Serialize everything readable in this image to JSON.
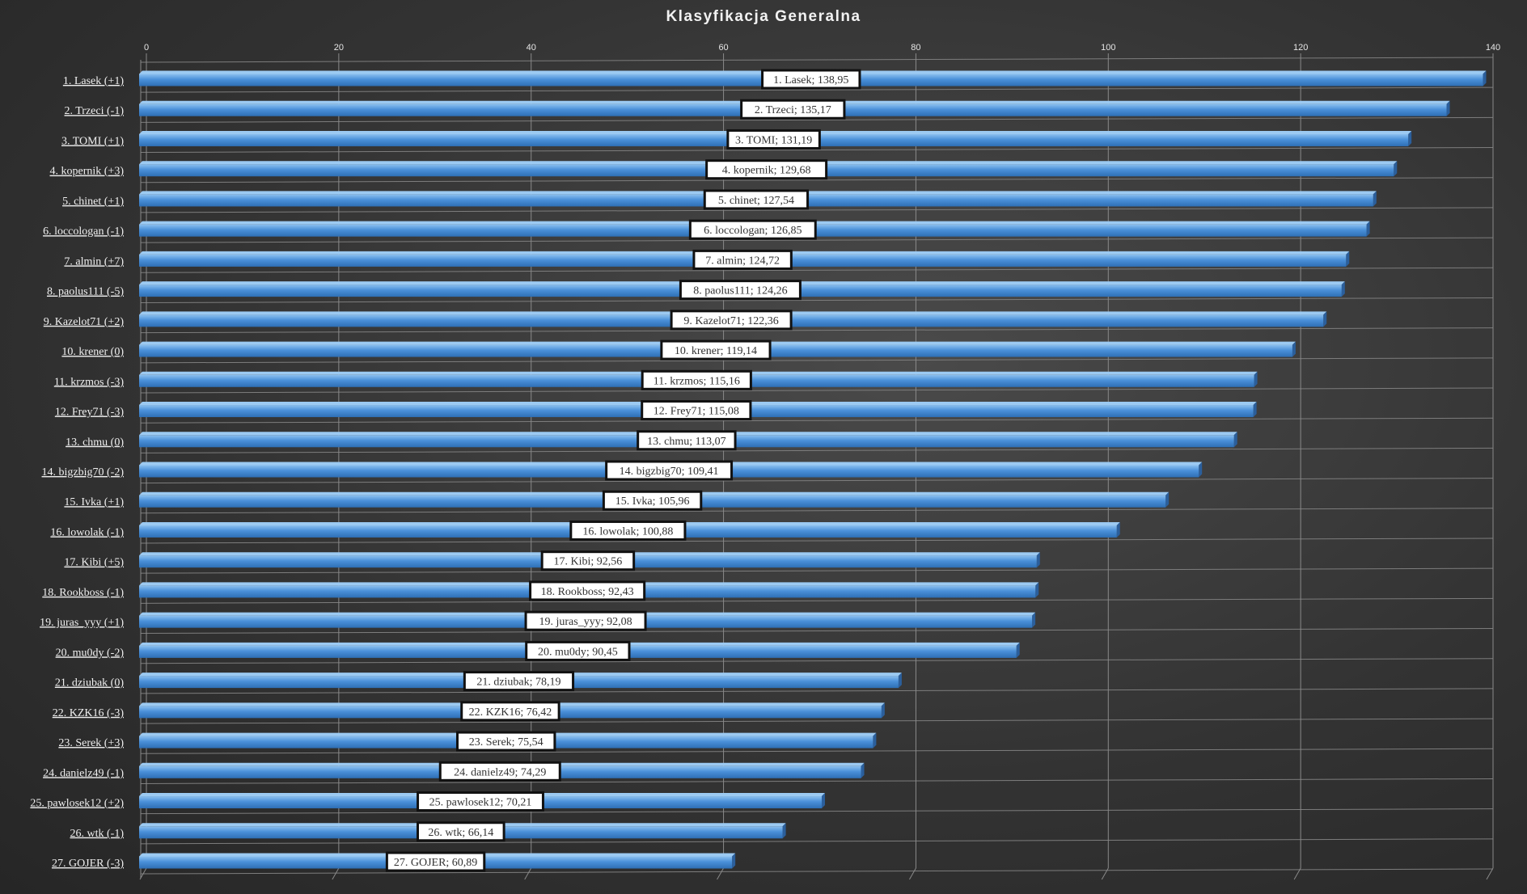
{
  "chart_data": {
    "type": "bar",
    "orientation": "horizontal",
    "title": "Klasyfikacja  Generalna",
    "xlim": [
      0,
      140
    ],
    "x_ticks": [
      "0",
      "20",
      "40",
      "60",
      "80",
      "100",
      "120",
      "140"
    ],
    "grid": true,
    "legend": "none",
    "bar_color": "#4a90d9",
    "background_color": "#333333",
    "categories": [
      "1. Lasek   (+1)",
      "2. Trzeci   (-1)",
      "3. TOMI   (+1)",
      "4. kopernik   (+3)",
      "5. chinet   (+1)",
      "6. loccologan   (-1)",
      "7. almin   (+7)",
      "8. paolus111   (-5)",
      "9. Kazelot71   (+2)",
      "10. krener   (0)",
      "11. krzmos   (-3)",
      "12. Frey71   (-3)",
      "13. chmu   (0)",
      "14. bigzbig70   (-2)",
      "15. Ivka   (+1)",
      "16. lowolak   (-1)",
      "17. Kibi   (+5)",
      "18. Rookboss   (-1)",
      "19. juras_yyy   (+1)",
      "20. mu0dy   (-2)",
      "21. dziubak   (0)",
      "22. KZK16   (-3)",
      "23. Serek   (+3)",
      "24. danielz49   (-1)",
      "25. pawlosek12   (+2)",
      "26. wtk   (-1)",
      "27. GOJER   (-3)"
    ],
    "values": [
      138.95,
      135.17,
      131.19,
      129.68,
      127.54,
      126.85,
      124.72,
      124.26,
      122.36,
      119.14,
      115.16,
      115.08,
      113.07,
      109.41,
      105.96,
      100.88,
      92.56,
      92.43,
      92.08,
      90.45,
      78.19,
      76.42,
      75.54,
      74.29,
      70.21,
      66.14,
      60.89
    ],
    "data_labels": [
      "1. Lasek; 138,95",
      "2. Trzeci; 135,17",
      "3. TOMI; 131,19",
      "4. kopernik;  129,68",
      "5. chinet; 127,54",
      "6. loccologan; 126,85",
      "7. almin; 124,72",
      "8. paolus111; 124,26",
      "9. Kazelot71; 122,36",
      "10. krener; 119,14",
      "11. krzmos; 115,16",
      "12. Frey71; 115,08",
      "13. chmu; 113,07",
      "14. bigzbig70; 109,41",
      "15. Ivka; 105,96",
      "16. lowolak; 100,88",
      "17. Kibi; 92,56",
      "18. Rookboss; 92,43",
      "19. juras_yyy; 92,08",
      "20. mu0dy;  90,45",
      "21. dziubak; 78,19",
      "22. KZK16; 76,42",
      "23. Serek; 75,54",
      "24. danielz49; 74,29",
      "25. pawlosek12; 70,21",
      "26. wtk; 66,14",
      "27. GOJER; 60,89"
    ]
  }
}
